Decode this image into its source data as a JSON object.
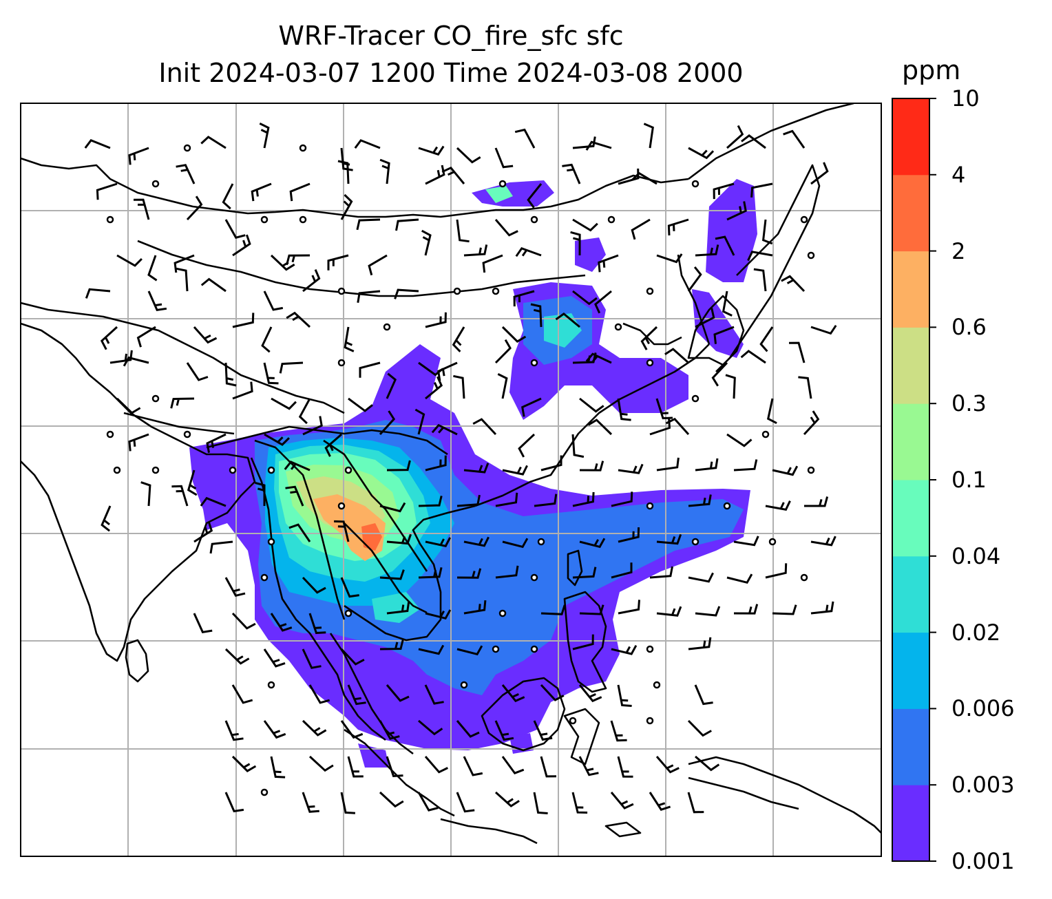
{
  "title_line1": "WRF-Tracer CO_fire_sfc sfc",
  "title_line2": "Init 2024-03-07 1200 Time 2024-03-08 2000",
  "colorbar": {
    "unit": "ppm",
    "levels": [
      "0.001",
      "0.003",
      "0.006",
      "0.02",
      "0.04",
      "0.1",
      "0.3",
      "0.6",
      "2",
      "4",
      "10"
    ],
    "colors": [
      "#6a2dff",
      "#3075f2",
      "#04b4ec",
      "#2fded6",
      "#68fcbc",
      "#99f992",
      "#ccdf85",
      "#fdb062",
      "#ff6c3b",
      "#ff2a17"
    ]
  },
  "map_data": {
    "type": "filled-contour map with wind barbs",
    "variable": "CO_fire_sfc",
    "level": "sfc",
    "units": "ppm",
    "gridlines": true,
    "colorbar_position": "right"
  }
}
